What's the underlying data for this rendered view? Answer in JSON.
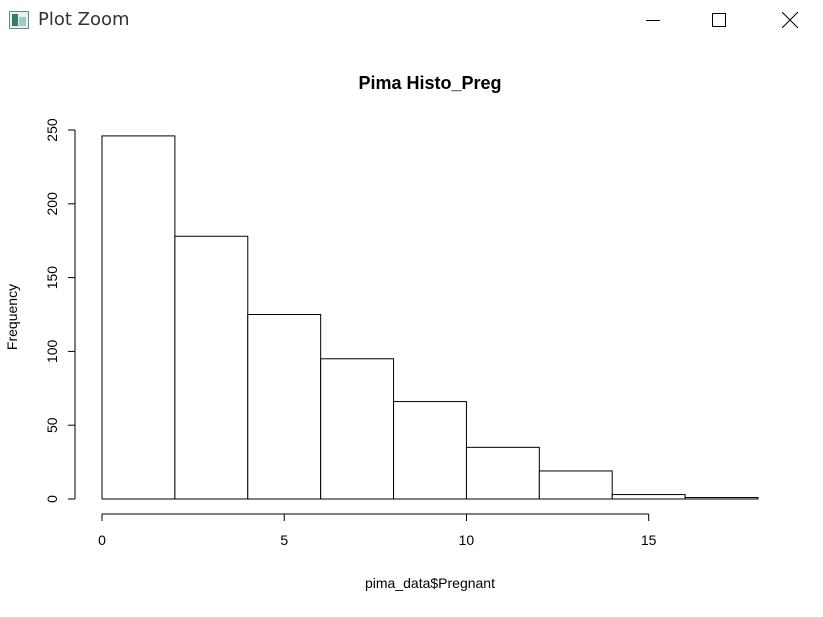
{
  "window": {
    "title": "Plot Zoom",
    "icons": {
      "app": "plot-window-icon",
      "minimize": "minimize-icon",
      "maximize": "maximize-icon",
      "close": "close-icon"
    }
  },
  "chart_data": {
    "type": "bar",
    "title": "Pima Histo_Preg",
    "xlabel": "pima_data$Pregnant",
    "ylabel": "Frequency",
    "bins": [
      {
        "x0": 0,
        "x1": 2,
        "value": 246
      },
      {
        "x0": 2,
        "x1": 4,
        "value": 178
      },
      {
        "x0": 4,
        "x1": 6,
        "value": 125
      },
      {
        "x0": 6,
        "x1": 8,
        "value": 95
      },
      {
        "x0": 8,
        "x1": 10,
        "value": 66
      },
      {
        "x0": 10,
        "x1": 12,
        "value": 35
      },
      {
        "x0": 12,
        "x1": 14,
        "value": 19
      },
      {
        "x0": 14,
        "x1": 16,
        "value": 3
      },
      {
        "x0": 16,
        "x1": 18,
        "value": 1
      }
    ],
    "xlim": [
      0,
      18
    ],
    "ylim": [
      0,
      250
    ],
    "xticks": [
      0,
      5,
      10,
      15
    ],
    "yticks": [
      0,
      50,
      100,
      150,
      200,
      250
    ],
    "grid": false,
    "fill": "#ffffff",
    "stroke": "#000000"
  }
}
